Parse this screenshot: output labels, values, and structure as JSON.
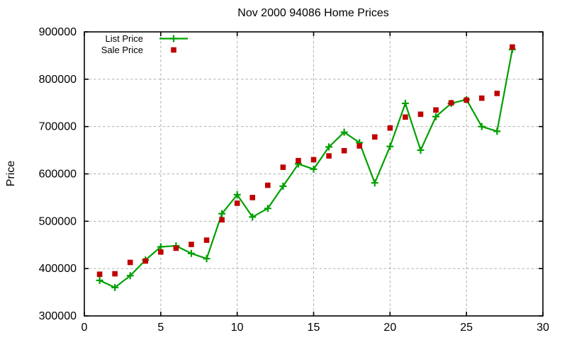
{
  "chart_data": {
    "type": "line",
    "title": "Nov 2000 94086 Home Prices",
    "xlabel": "",
    "ylabel": "Price",
    "xlim": [
      0,
      30
    ],
    "ylim": [
      300000,
      900000
    ],
    "x_ticks": [
      0,
      5,
      10,
      15,
      20,
      25,
      30
    ],
    "y_ticks": [
      300000,
      400000,
      500000,
      600000,
      700000,
      800000,
      900000
    ],
    "grid": true,
    "grid_color": "#b0b0b0",
    "legend_position": "top-left",
    "x": [
      1,
      2,
      3,
      4,
      5,
      6,
      7,
      8,
      9,
      10,
      11,
      12,
      13,
      14,
      15,
      16,
      17,
      18,
      19,
      20,
      21,
      22,
      23,
      24,
      25,
      26,
      27,
      28
    ],
    "series": [
      {
        "name": "List Price",
        "style": "line-with-cross-markers",
        "color": "#00a000",
        "values": [
          375000,
          360000,
          385000,
          418000,
          446000,
          448000,
          432000,
          421000,
          516000,
          556000,
          509000,
          527000,
          574000,
          621000,
          610000,
          657000,
          688000,
          666000,
          581000,
          658000,
          749000,
          650000,
          721000,
          749000,
          757000,
          700000,
          690000,
          863000
        ]
      },
      {
        "name": "Sale Price",
        "style": "square-markers",
        "color": "#c00000",
        "values": [
          388000,
          389000,
          413000,
          416000,
          435000,
          443000,
          451000,
          460000,
          503000,
          538000,
          550000,
          576000,
          614000,
          628000,
          630000,
          638000,
          649000,
          659000,
          678000,
          697000,
          720000,
          726000,
          735000,
          750000,
          756000,
          760000,
          770000,
          868000
        ]
      }
    ]
  }
}
